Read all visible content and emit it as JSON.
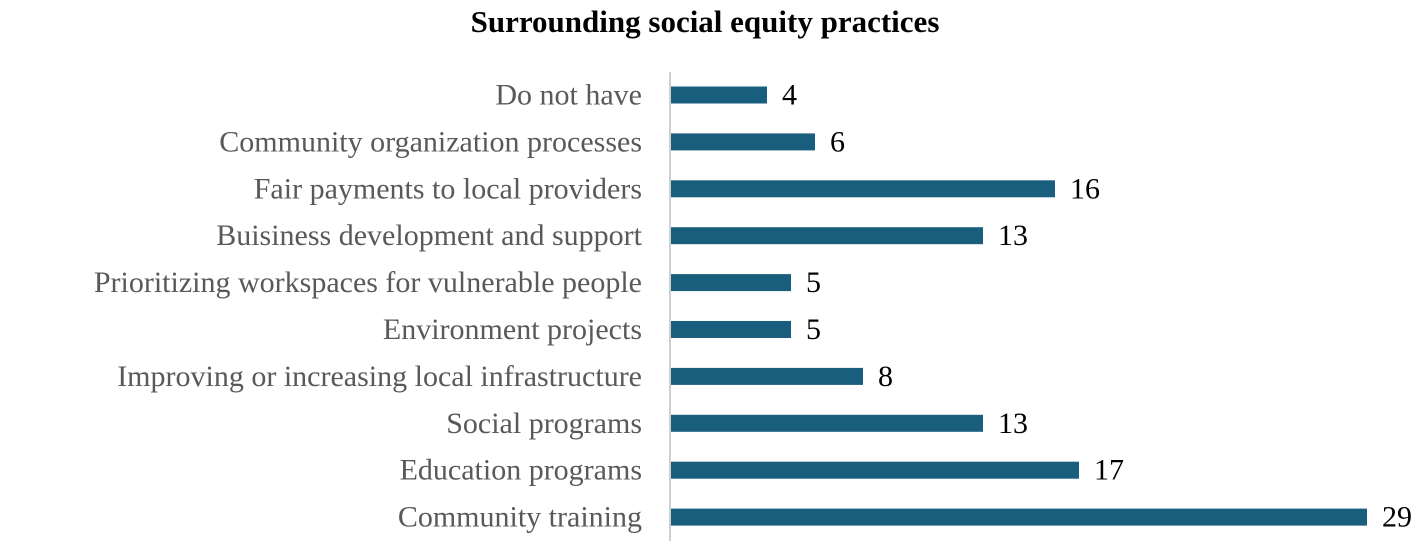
{
  "chart_data": {
    "type": "bar",
    "orientation": "horizontal",
    "title": "Surrounding social equity practices",
    "categories": [
      "Do not have",
      "Community organization processes",
      "Fair payments to local providers",
      "Buisiness development and support",
      "Prioritizing workspaces for vulnerable people",
      "Environment projects",
      "Improving or increasing local infrastructure",
      "Social programs",
      "Education programs",
      "Community training"
    ],
    "values": [
      4,
      6,
      16,
      13,
      5,
      5,
      8,
      13,
      17,
      29
    ],
    "data_labels": [
      "4",
      "6",
      "16",
      "13",
      "5",
      "5",
      "8",
      "13",
      "17",
      "29"
    ],
    "xlabel": "",
    "ylabel": "",
    "xlim": [
      0,
      29
    ],
    "grid": false,
    "legend": "none",
    "bar_color": "#1a5e7e",
    "axis_color": "#bfbfbf",
    "label_color": "#595959"
  }
}
